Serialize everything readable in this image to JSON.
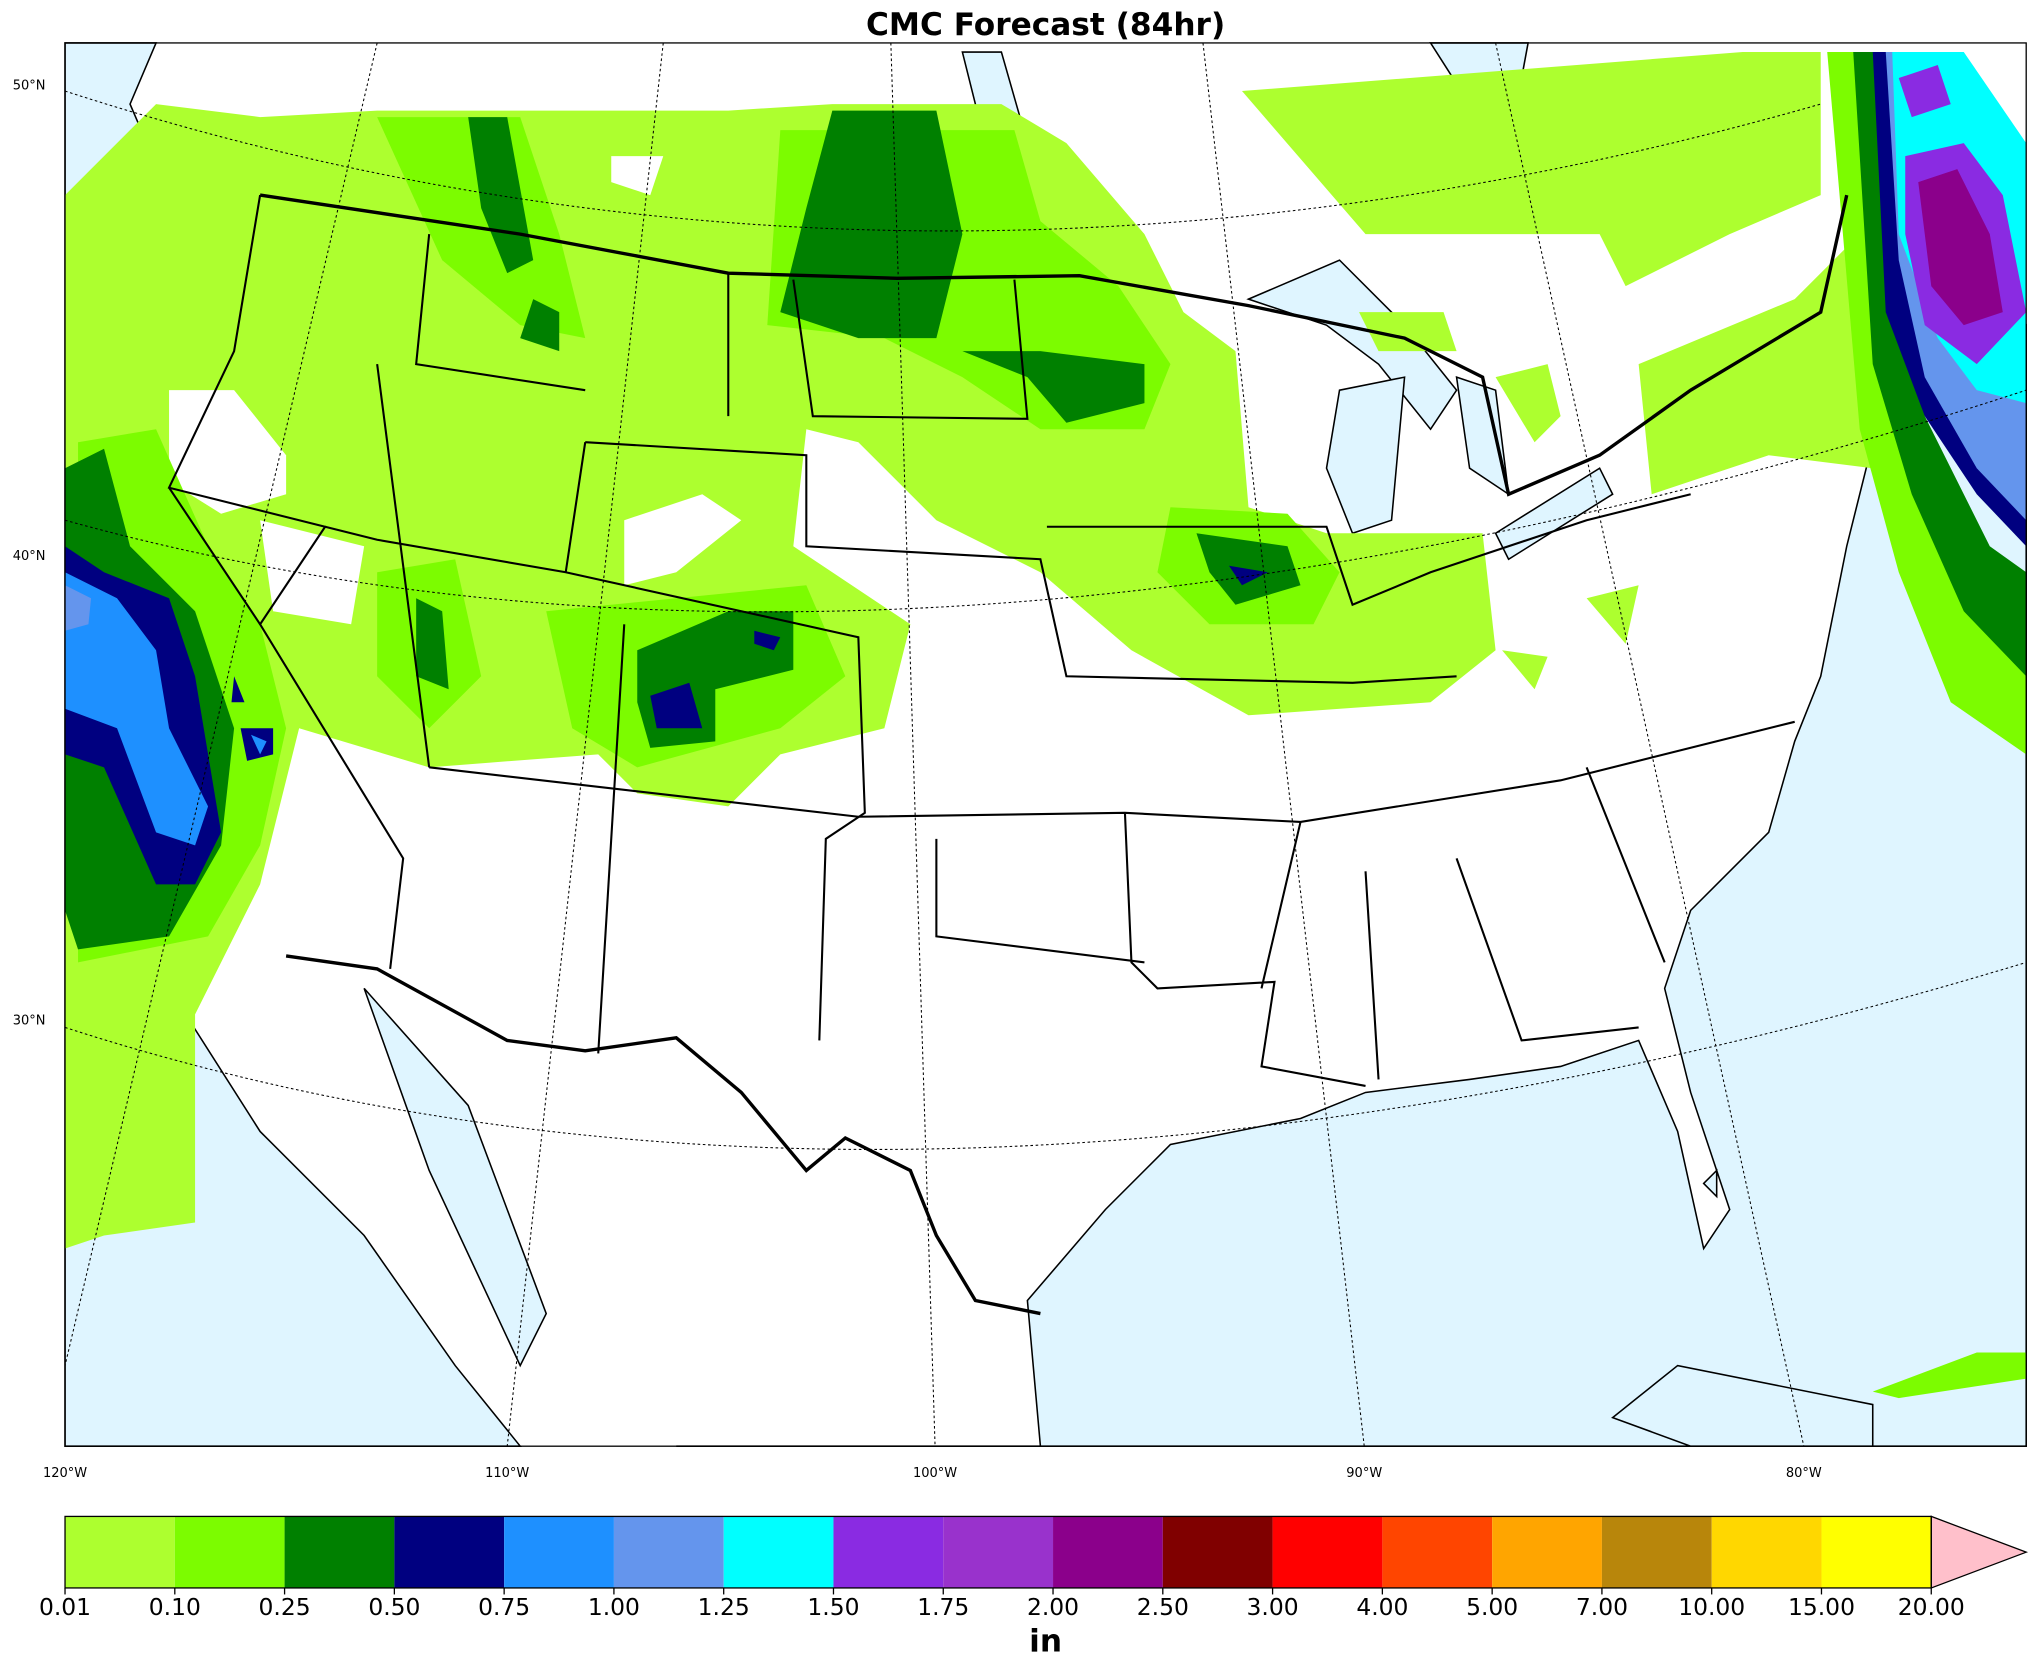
{
  "title": "CMC Forecast (84hr)",
  "map": {
    "latitude_labels": [
      "50°N",
      "40°N",
      "30°N"
    ],
    "longitude_labels": [
      "120°W",
      "110°W",
      "100°W",
      "90°W",
      "80°W"
    ]
  },
  "colorbar": {
    "label": "in",
    "ticks": [
      {
        "value": 0.01,
        "label": "0.01"
      },
      {
        "value": 0.1,
        "label": "0.10"
      },
      {
        "value": 0.25,
        "label": "0.25"
      },
      {
        "value": 0.5,
        "label": "0.50"
      },
      {
        "value": 0.75,
        "label": "0.75"
      },
      {
        "value": 1,
        "label": "1.00"
      },
      {
        "value": 1.25,
        "label": "1.25"
      },
      {
        "value": 1.5,
        "label": "1.50"
      },
      {
        "value": 1.75,
        "label": "1.75"
      },
      {
        "value": 2,
        "label": "2.00"
      },
      {
        "value": 2.5,
        "label": "2.50"
      },
      {
        "value": 3,
        "label": "3.00"
      },
      {
        "value": 4,
        "label": "4.00"
      },
      {
        "value": 5,
        "label": "5.00"
      },
      {
        "value": 7,
        "label": "7.00"
      },
      {
        "value": 10,
        "label": "10.00"
      },
      {
        "value": 15,
        "label": "15.00"
      },
      {
        "value": 20,
        "label": "20.00"
      }
    ],
    "colors": [
      "#adff2f",
      "#7cfc00",
      "#008000",
      "#000080",
      "#1e90ff",
      "#6495ed",
      "#00ffff",
      "#8a2be2",
      "#9932cc",
      "#8b008b",
      "#800000",
      "#ff0000",
      "#ff4500",
      "#ffa500",
      "#b8860b",
      "#ffd700",
      "#ffff00"
    ],
    "extend_color": "#ffc0cb"
  }
}
